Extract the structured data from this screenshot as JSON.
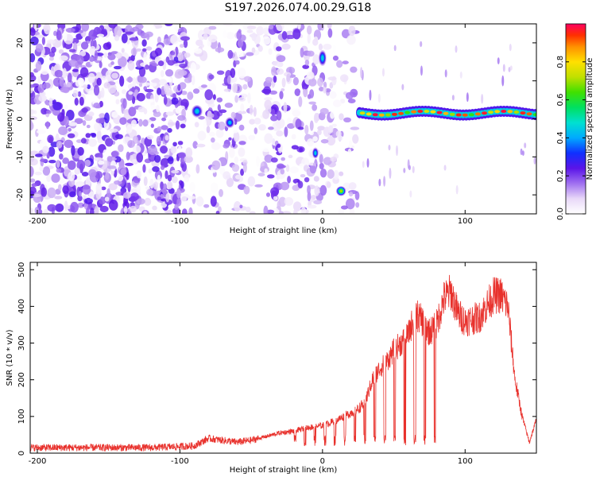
{
  "title": "S197.2026.074.00.29.G18",
  "chart_data": [
    {
      "type": "heatmap",
      "xlabel": "Height of straight line (km)",
      "ylabel": "Frequency (Hz)",
      "xlim": [
        -205,
        150
      ],
      "ylim": [
        -25,
        25
      ],
      "xticks": [
        -200,
        -100,
        0,
        100
      ],
      "yticks": [
        -20,
        -10,
        0,
        10,
        20
      ],
      "colorbar": {
        "label": "Normalized spectral amplitude",
        "range": [
          0,
          1
        ],
        "ticks": [
          0.0,
          0.2,
          0.4,
          0.6,
          0.8
        ]
      },
      "features": [
        {
          "x_range": [
            25,
            150
          ],
          "frequency": 2,
          "amplitude": "0.6-1.0",
          "shape": "continuous band"
        },
        {
          "x": -88,
          "frequency": 2,
          "amplitude": "0.3"
        },
        {
          "x": -65,
          "frequency": -1,
          "amplitude": "0.3"
        },
        {
          "x": -5,
          "frequency": -9,
          "amplitude": "0.3"
        },
        {
          "x": 0,
          "frequency": 16,
          "amplitude": "0.3"
        },
        {
          "x": 13,
          "frequency": -19,
          "amplitude": "0.6"
        }
      ]
    },
    {
      "type": "line",
      "xlabel": "Height of straight line (km)",
      "ylabel": "SNR (10 * v/v)",
      "xlim": [
        -205,
        150
      ],
      "ylim": [
        0,
        520
      ],
      "xticks": [
        -200,
        -100,
        0,
        100
      ],
      "yticks": [
        0,
        100,
        200,
        300,
        400,
        500
      ],
      "series": [
        {
          "color": "#e8312c",
          "x": [
            -205,
            -180,
            -150,
            -120,
            -100,
            -90,
            -80,
            -70,
            -60,
            -50,
            -40,
            -30,
            -20,
            -10,
            0,
            10,
            20,
            25,
            30,
            35,
            40,
            45,
            50,
            55,
            60,
            65,
            70,
            75,
            80,
            85,
            90,
            95,
            100,
            110,
            120,
            125,
            130,
            135,
            140,
            145,
            150
          ],
          "y": [
            15,
            15,
            15,
            15,
            18,
            20,
            40,
            35,
            30,
            35,
            45,
            55,
            60,
            70,
            75,
            90,
            110,
            120,
            140,
            200,
            230,
            250,
            280,
            300,
            320,
            380,
            360,
            330,
            350,
            420,
            440,
            380,
            360,
            370,
            430,
            430,
            400,
            200,
            100,
            30,
            90
          ]
        }
      ]
    }
  ]
}
